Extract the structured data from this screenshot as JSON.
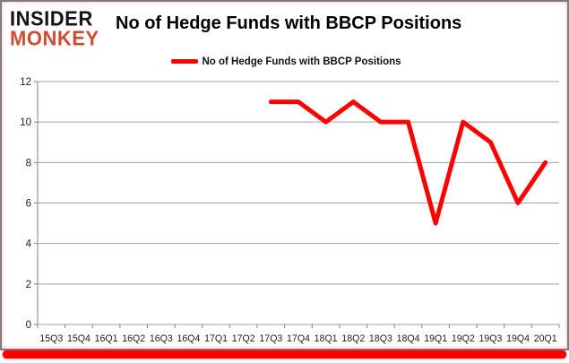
{
  "brand": {
    "line1": "INSIDER",
    "line2": "MONKEY",
    "color": "#d34a32"
  },
  "title": "No of Hedge Funds with BBCP Positions",
  "legend": {
    "label": "No of Hedge Funds with BBCP Positions",
    "line_color": "#ff0000"
  },
  "chart_data": {
    "type": "line",
    "title": "No of Hedge Funds with BBCP Positions",
    "categories": [
      "15Q3",
      "15Q4",
      "16Q1",
      "16Q2",
      "16Q3",
      "16Q4",
      "17Q1",
      "17Q2",
      "17Q3",
      "17Q4",
      "18Q1",
      "18Q2",
      "18Q3",
      "18Q4",
      "19Q1",
      "19Q2",
      "19Q3",
      "19Q4",
      "20Q1"
    ],
    "series": [
      {
        "name": "No of Hedge Funds with BBCP Positions",
        "color": "#ff0000",
        "values": [
          null,
          null,
          null,
          null,
          null,
          null,
          null,
          null,
          11,
          11,
          10,
          11,
          10,
          10,
          5,
          10,
          9,
          6,
          8
        ]
      }
    ],
    "xlabel": "",
    "ylabel": "",
    "ylim": [
      0,
      12
    ],
    "yticks": [
      0,
      2,
      4,
      6,
      8,
      10,
      12
    ],
    "grid": true,
    "legend_position": "top-center"
  },
  "accents": {
    "bottom_bar_color": "#ff0000",
    "border_color": "#7d7d7d",
    "grid_color": "#a0a0a0",
    "axis_color": "#808080",
    "axis_text_color": "#1c1c1c"
  }
}
